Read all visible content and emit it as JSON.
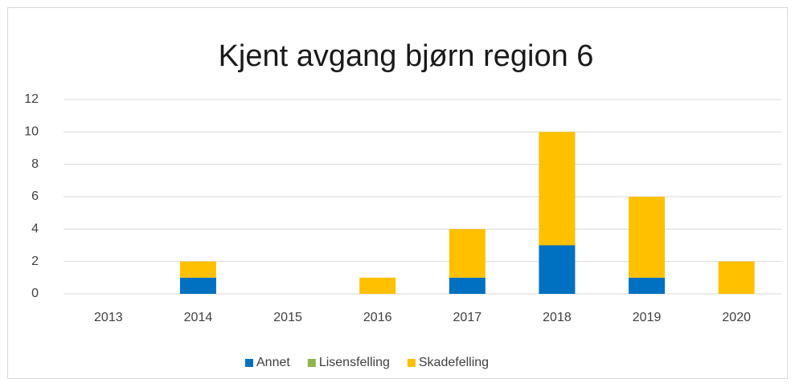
{
  "chart_data": {
    "type": "stacked_bar",
    "title": "Kjent avgang bjørn region 6",
    "categories": [
      "2013",
      "2014",
      "2015",
      "2016",
      "2017",
      "2018",
      "2019",
      "2020"
    ],
    "series": [
      {
        "name": "Annet",
        "color": "#0070c0",
        "values": [
          0,
          1,
          0,
          0,
          1,
          3,
          1,
          0
        ]
      },
      {
        "name": "Lisensfelling",
        "color": "#8fb54e",
        "values": [
          0,
          0,
          0,
          0,
          0,
          0,
          0,
          0
        ]
      },
      {
        "name": "Skadefelling",
        "color": "#ffc000",
        "values": [
          0,
          1,
          0,
          1,
          3,
          7,
          5,
          2
        ]
      }
    ],
    "ylim": [
      0,
      12
    ],
    "yticks": [
      0,
      2,
      4,
      6,
      8,
      10,
      12
    ],
    "grid": true,
    "legend": "bottom"
  }
}
